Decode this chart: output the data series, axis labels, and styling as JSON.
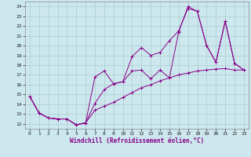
{
  "xlabel": "Windchill (Refroidissement éolien,°C)",
  "bg_color": "#cce8ee",
  "line_color": "#880088",
  "grid_color": "#aacccc",
  "xlim": [
    -0.5,
    23.5
  ],
  "ylim": [
    11.5,
    24.5
  ],
  "yticks": [
    12,
    13,
    14,
    15,
    16,
    17,
    18,
    19,
    20,
    21,
    22,
    23,
    24
  ],
  "xticks": [
    0,
    1,
    2,
    3,
    4,
    5,
    6,
    7,
    8,
    9,
    10,
    11,
    12,
    13,
    14,
    15,
    16,
    17,
    18,
    19,
    20,
    21,
    22,
    23
  ],
  "series1": [
    [
      0,
      14.8
    ],
    [
      1,
      13.1
    ],
    [
      2,
      12.6
    ],
    [
      3,
      12.5
    ],
    [
      4,
      12.5
    ],
    [
      5,
      11.9
    ],
    [
      6,
      12.1
    ],
    [
      7,
      14.1
    ],
    [
      8,
      15.5
    ],
    [
      9,
      16.1
    ],
    [
      10,
      16.3
    ],
    [
      11,
      18.9
    ],
    [
      12,
      19.8
    ],
    [
      13,
      19.0
    ],
    [
      14,
      19.3
    ],
    [
      15,
      20.5
    ],
    [
      16,
      21.5
    ],
    [
      17,
      23.8
    ],
    [
      18,
      23.5
    ],
    [
      19,
      20.0
    ],
    [
      20,
      18.3
    ],
    [
      21,
      22.5
    ],
    [
      22,
      18.2
    ],
    [
      23,
      17.5
    ]
  ],
  "series2": [
    [
      0,
      14.8
    ],
    [
      1,
      13.1
    ],
    [
      2,
      12.6
    ],
    [
      3,
      12.5
    ],
    [
      4,
      12.5
    ],
    [
      5,
      11.9
    ],
    [
      6,
      12.1
    ],
    [
      7,
      13.4
    ],
    [
      8,
      13.8
    ],
    [
      9,
      14.2
    ],
    [
      10,
      14.7
    ],
    [
      11,
      15.2
    ],
    [
      12,
      15.7
    ],
    [
      13,
      16.0
    ],
    [
      14,
      16.4
    ],
    [
      15,
      16.7
    ],
    [
      16,
      17.0
    ],
    [
      17,
      17.2
    ],
    [
      18,
      17.4
    ],
    [
      19,
      17.5
    ],
    [
      20,
      17.6
    ],
    [
      21,
      17.65
    ],
    [
      22,
      17.5
    ],
    [
      23,
      17.5
    ]
  ],
  "series3": [
    [
      0,
      14.8
    ],
    [
      1,
      13.1
    ],
    [
      2,
      12.6
    ],
    [
      3,
      12.5
    ],
    [
      4,
      12.5
    ],
    [
      5,
      11.9
    ],
    [
      6,
      12.1
    ],
    [
      7,
      16.8
    ],
    [
      8,
      17.4
    ],
    [
      9,
      16.1
    ],
    [
      10,
      16.3
    ],
    [
      11,
      17.4
    ],
    [
      12,
      17.5
    ],
    [
      13,
      16.6
    ],
    [
      14,
      17.5
    ],
    [
      15,
      16.7
    ],
    [
      16,
      21.4
    ],
    [
      17,
      24.0
    ],
    [
      18,
      23.5
    ],
    [
      19,
      20.0
    ],
    [
      20,
      18.3
    ],
    [
      21,
      22.5
    ],
    [
      22,
      18.2
    ],
    [
      23,
      17.5
    ]
  ]
}
